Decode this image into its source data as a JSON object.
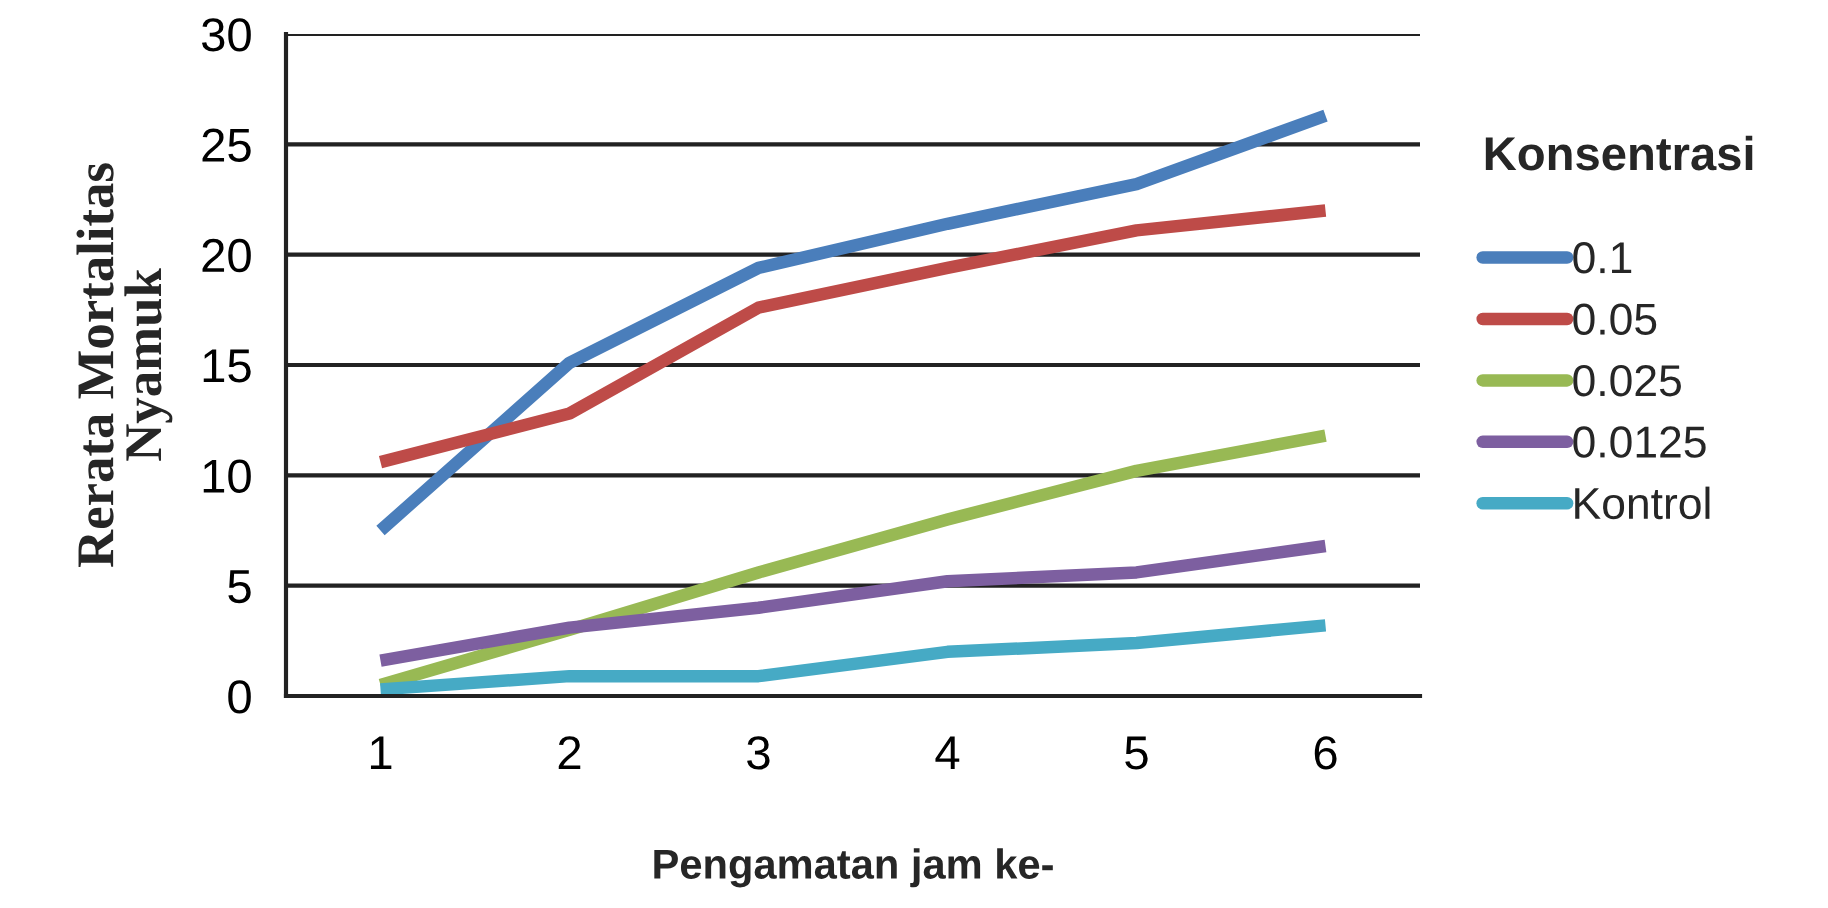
{
  "chart_data": {
    "type": "line",
    "xlabel": "Pengamatan jam ke-",
    "ylabel": "Rerata Mortalitas\nNyamuk",
    "legend_title": "Konsentrasi",
    "categories": [
      "1",
      "2",
      "3",
      "4",
      "5",
      "6"
    ],
    "series": [
      {
        "name": "0.1",
        "color": "#4a7ebb",
        "values": [
          7.5,
          15.1,
          19.4,
          21.4,
          23.2,
          26.3
        ]
      },
      {
        "name": "0.05",
        "color": "#be4b48",
        "values": [
          10.6,
          12.8,
          17.6,
          19.4,
          21.1,
          22.0
        ]
      },
      {
        "name": "0.025",
        "color": "#98b954",
        "values": [
          0.5,
          3.0,
          5.6,
          8.0,
          10.2,
          11.8
        ]
      },
      {
        "name": "0.0125",
        "color": "#7d5fa0",
        "values": [
          1.6,
          3.1,
          4.0,
          5.2,
          5.6,
          6.8
        ]
      },
      {
        "name": "Kontrol",
        "color": "#46aac5",
        "values": [
          0.3,
          0.9,
          0.9,
          2.0,
          2.4,
          3.2
        ]
      }
    ],
    "ylim": [
      0,
      30
    ],
    "yticks": [
      0,
      5,
      10,
      15,
      20,
      25,
      30
    ],
    "grid": "y",
    "legend": "right",
    "marker": "none",
    "line_style": "solid"
  }
}
